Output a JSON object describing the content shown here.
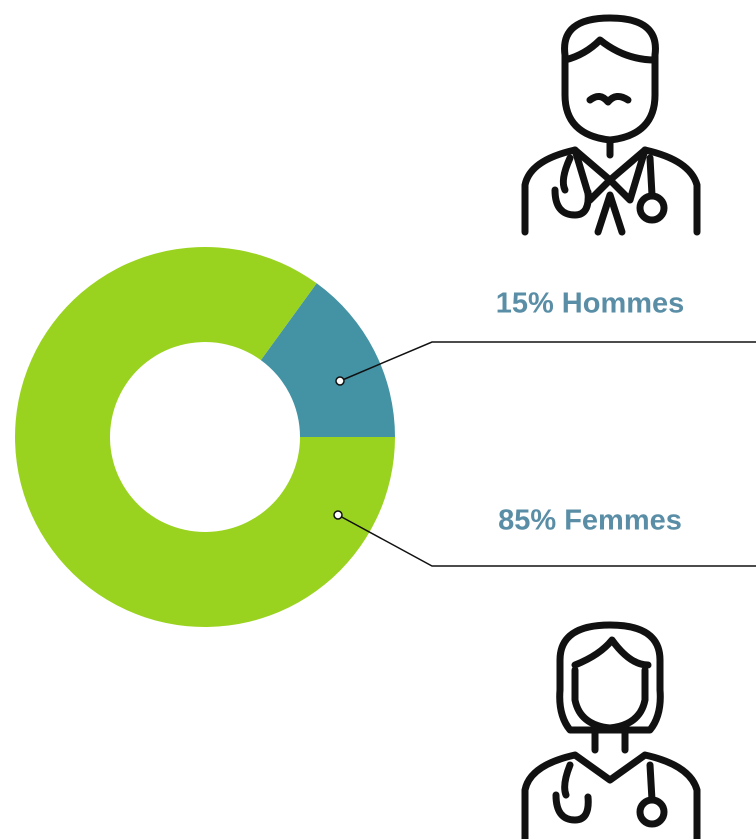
{
  "chart_data": {
    "type": "donut",
    "categories": [
      "Hommes",
      "Femmes"
    ],
    "values": [
      15,
      85
    ],
    "value_labels": [
      "15% Hommes",
      "85% Femmes"
    ],
    "colors": [
      "#4393a5",
      "#9ad31f"
    ]
  }
}
